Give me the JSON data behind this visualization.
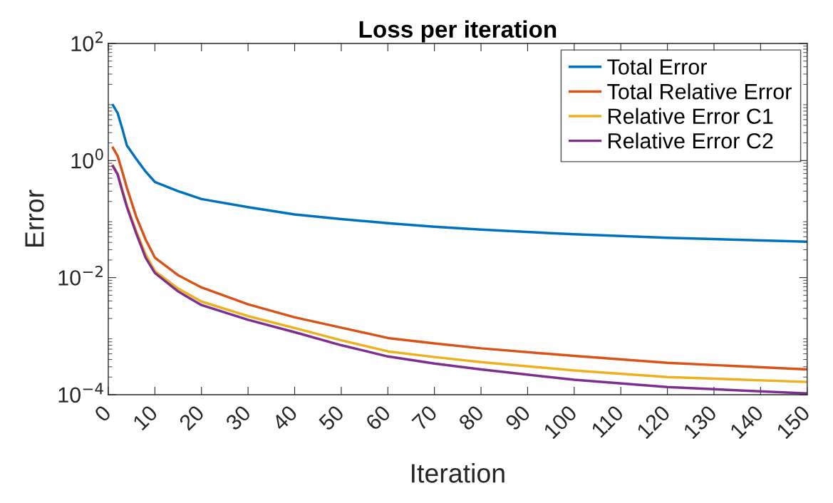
{
  "chart_data": {
    "type": "line",
    "title": "Loss per iteration",
    "xlabel": "Iteration",
    "ylabel": "Error",
    "x": [
      1,
      2,
      3,
      4,
      6,
      8,
      10,
      15,
      20,
      30,
      40,
      50,
      60,
      70,
      80,
      100,
      120,
      150
    ],
    "series": [
      {
        "name": "Total Error",
        "color": "#0072bd",
        "values": [
          8.85,
          6.5,
          3.5,
          1.8,
          1.07,
          0.65,
          0.43,
          0.3,
          0.22,
          0.16,
          0.12,
          0.1,
          0.085,
          0.074,
          0.066,
          0.055,
          0.048,
          0.041
        ]
      },
      {
        "name": "Total Relative Error",
        "color": "#d95319",
        "values": [
          1.65,
          1.2,
          0.65,
          0.34,
          0.11,
          0.045,
          0.022,
          0.011,
          0.0068,
          0.0035,
          0.0021,
          0.0014,
          0.00093,
          0.00075,
          0.00062,
          0.00046,
          0.00035,
          0.00027
        ]
      },
      {
        "name": "Relative Error C1",
        "color": "#edb120",
        "values": [
          0.82,
          0.6,
          0.32,
          0.17,
          0.062,
          0.025,
          0.013,
          0.0065,
          0.0039,
          0.0022,
          0.00138,
          0.00085,
          0.00055,
          0.00044,
          0.00036,
          0.00026,
          0.0002,
          0.000165
        ]
      },
      {
        "name": "Relative Error C2",
        "color": "#7e2f8e",
        "values": [
          0.8,
          0.58,
          0.3,
          0.16,
          0.057,
          0.022,
          0.012,
          0.0058,
          0.0034,
          0.0019,
          0.00117,
          0.0007,
          0.00045,
          0.00034,
          0.00027,
          0.00018,
          0.000135,
          0.000105
        ]
      }
    ],
    "log": "y",
    "xlim": [
      0,
      150
    ],
    "xticks": [
      0,
      10,
      20,
      30,
      40,
      50,
      60,
      70,
      80,
      90,
      100,
      110,
      120,
      130,
      140,
      150
    ],
    "ylim": [
      0.0001,
      100
    ],
    "yticks": [
      {
        "value": 0.0001,
        "label": "10$^{−4}$"
      },
      {
        "value": 0.01,
        "label": "10$^{−2}$"
      },
      {
        "value": 1,
        "label": "10$^{0}$"
      },
      {
        "value": 100,
        "label": "10$^{2}$"
      }
    ],
    "grid": false,
    "legend": "top right",
    "marker": "none",
    "line_style": "solid"
  }
}
